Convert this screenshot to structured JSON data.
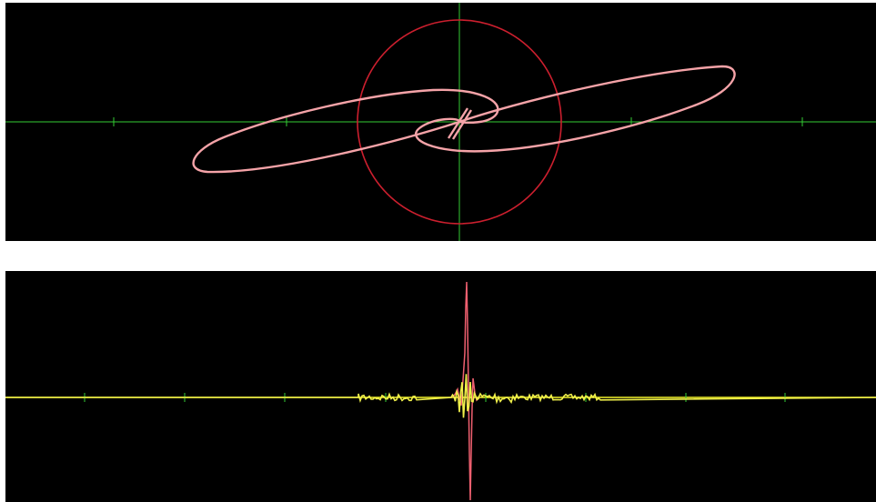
{
  "display": {
    "background_color": "#000000",
    "page_color": "#ffffff"
  },
  "lissajous_view": {
    "axis_color": "#33cc33",
    "reference_circle_color": "#cc1f2e",
    "trace_color": "#f5a3a8",
    "x_tick_count": 5
  },
  "waveform_view": {
    "baseline_color": "#f2f22a",
    "channel_a_color": "#f0f04a",
    "channel_b_color": "#f06070",
    "tick_color": "#33cc33",
    "x_tick_count": 8
  }
}
